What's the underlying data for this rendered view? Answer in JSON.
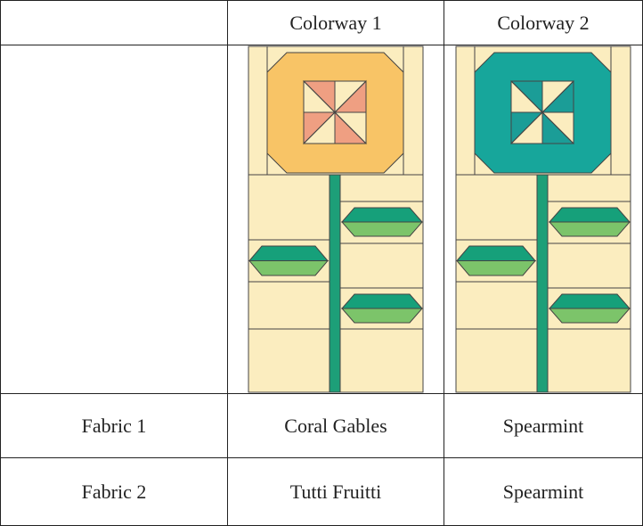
{
  "table": {
    "header": [
      "Colorway 1",
      "Colorway 2"
    ],
    "rows": [
      [
        "Fabric 1",
        "Coral Gables",
        "Spearmint"
      ],
      [
        "Fabric 2",
        "Tutti Fruitti",
        "Spearmint"
      ]
    ]
  }
}
